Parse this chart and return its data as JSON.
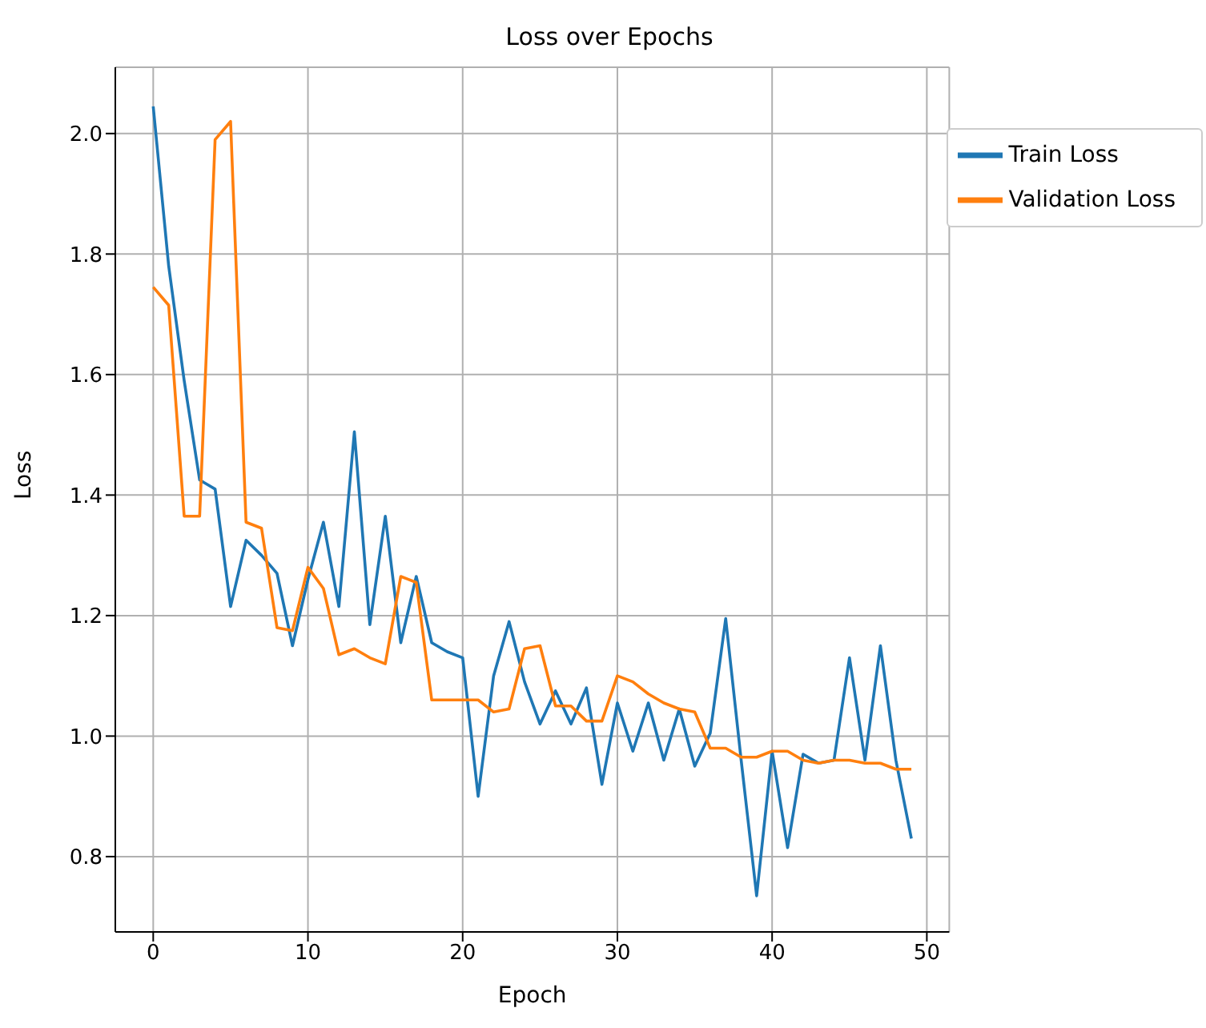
{
  "chart_data": {
    "type": "line",
    "title": "Loss over Epochs",
    "xlabel": "Epoch",
    "ylabel": "Loss",
    "x": [
      0,
      1,
      2,
      3,
      4,
      5,
      6,
      7,
      8,
      9,
      10,
      11,
      12,
      13,
      14,
      15,
      16,
      17,
      18,
      19,
      20,
      21,
      22,
      23,
      24,
      25,
      26,
      27,
      28,
      29,
      30,
      31,
      32,
      33,
      34,
      35,
      36,
      37,
      38,
      39,
      40,
      41,
      42,
      43,
      44,
      45,
      46,
      47,
      48,
      49
    ],
    "series": [
      {
        "name": "Train Loss",
        "color": "#1f77b4",
        "values": [
          2.045,
          1.78,
          1.59,
          1.425,
          1.41,
          1.215,
          1.325,
          1.3,
          1.27,
          1.15,
          1.26,
          1.355,
          1.215,
          1.505,
          1.185,
          1.365,
          1.155,
          1.265,
          1.155,
          1.14,
          1.13,
          0.9,
          1.1,
          1.19,
          1.09,
          1.02,
          1.075,
          1.02,
          1.08,
          0.92,
          1.055,
          0.975,
          1.055,
          0.96,
          1.045,
          0.95,
          1.005,
          1.195,
          0.96,
          0.735,
          0.975,
          0.815,
          0.97,
          0.955,
          0.96,
          1.13,
          0.96,
          1.15,
          0.96,
          0.83
        ]
      },
      {
        "name": "Validation Loss",
        "color": "#ff7f0e",
        "values": [
          1.745,
          1.715,
          1.365,
          1.365,
          1.99,
          2.02,
          1.355,
          1.345,
          1.18,
          1.175,
          1.28,
          1.245,
          1.135,
          1.145,
          1.13,
          1.12,
          1.265,
          1.255,
          1.06,
          1.06,
          1.06,
          1.06,
          1.04,
          1.045,
          1.145,
          1.15,
          1.05,
          1.05,
          1.025,
          1.025,
          1.1,
          1.09,
          1.07,
          1.055,
          1.045,
          1.04,
          0.98,
          0.98,
          0.965,
          0.965,
          0.975,
          0.975,
          0.96,
          0.955,
          0.96,
          0.96,
          0.955,
          0.955,
          0.945,
          0.945
        ]
      }
    ],
    "xlim": [
      -2.45,
      51.45
    ],
    "xticks": [
      0,
      10,
      20,
      30,
      40,
      50
    ],
    "ylim": [
      0.675,
      2.11
    ],
    "yticks": [
      {
        "value": 0.8,
        "label": "0.8"
      },
      {
        "value": 1.0,
        "label": "1.0"
      },
      {
        "value": 1.2,
        "label": "1.2"
      },
      {
        "value": 1.4,
        "label": "1.4"
      },
      {
        "value": 1.6,
        "label": "1.6"
      },
      {
        "value": 1.8,
        "label": "1.8"
      },
      {
        "value": 2.0,
        "label": "2.0"
      }
    ],
    "grid": true,
    "legend": "top right",
    "marker": "none",
    "line_style": "solid"
  }
}
